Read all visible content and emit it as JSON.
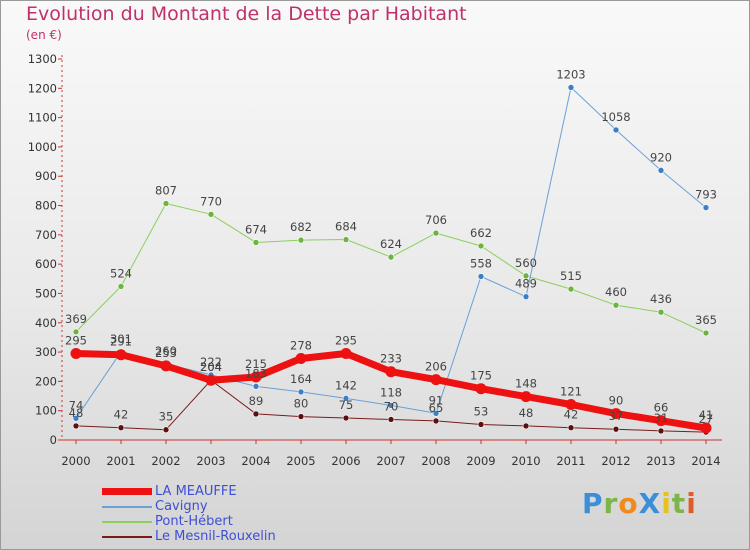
{
  "title": "Evolution du Montant de la Dette par Habitant",
  "subtitle": "(en €)",
  "logo": {
    "text": "ProXiti",
    "letters": [
      {
        "ch": "P",
        "color": "#3a8fd8"
      },
      {
        "ch": "r",
        "color": "#7ab648"
      },
      {
        "ch": "o",
        "color": "#f08a1c"
      },
      {
        "ch": "X",
        "color": "#3a8fd8"
      },
      {
        "ch": "i",
        "color": "#e8c21a"
      },
      {
        "ch": "t",
        "color": "#7ab648"
      },
      {
        "ch": "i",
        "color": "#e05a2a"
      }
    ]
  },
  "chart_data": {
    "type": "line",
    "x": [
      2000,
      2001,
      2002,
      2003,
      2004,
      2005,
      2006,
      2007,
      2008,
      2009,
      2010,
      2011,
      2012,
      2013,
      2014
    ],
    "ylim": [
      0,
      1300
    ],
    "yticks": [
      0,
      100,
      200,
      300,
      400,
      500,
      600,
      700,
      800,
      900,
      1000,
      1100,
      1200,
      1300
    ],
    "grid": false,
    "legend_position": "bottom-left",
    "series": [
      {
        "name": "Le Mesnil-Rouxelin",
        "color": "#7a1c1c",
        "dot": "#5a1010",
        "width": 1,
        "values": [
          48,
          42,
          35,
          204,
          89,
          80,
          75,
          70,
          65,
          53,
          48,
          42,
          37,
          31,
          27
        ],
        "labels": [
          "48",
          "42",
          "35",
          "204",
          "89",
          "80",
          "75",
          "70",
          "65",
          "53",
          "48",
          "42",
          "37",
          "31",
          "27"
        ]
      },
      {
        "name": "Pont-Hébert",
        "color": "#8ccf5a",
        "dot": "#6db33f",
        "width": 1,
        "values": [
          369,
          524,
          807,
          770,
          674,
          682,
          684,
          624,
          706,
          662,
          560,
          515,
          460,
          436,
          365
        ],
        "labels": [
          "369",
          "524",
          "807",
          "770",
          "674",
          "682",
          "684",
          "624",
          "706",
          "662",
          "560",
          "515",
          "460",
          "436",
          "365"
        ]
      },
      {
        "name": "Cavigny",
        "color": "#6aa0d6",
        "dot": "#3c7fc4",
        "width": 1,
        "values": [
          74,
          301,
          260,
          222,
          183,
          164,
          142,
          118,
          91,
          558,
          489,
          1203,
          1058,
          920,
          793
        ],
        "labels": [
          "74",
          "301",
          "260",
          "222",
          "183",
          "164",
          "142",
          "118",
          "91",
          "558",
          "489",
          "1203",
          "1058",
          "920",
          "793"
        ]
      },
      {
        "name": "LA MEAUFFE",
        "color": "#ee1111",
        "dot": "#ee1111",
        "width": 7,
        "values": [
          295,
          291,
          253,
          204,
          215,
          278,
          295,
          233,
          206,
          175,
          148,
          121,
          90,
          66,
          41
        ],
        "labels": [
          "295",
          "291",
          "253",
          "204",
          "215",
          "278",
          "295",
          "233",
          "206",
          "175",
          "148",
          "121",
          "90",
          "66",
          "41"
        ]
      }
    ]
  }
}
